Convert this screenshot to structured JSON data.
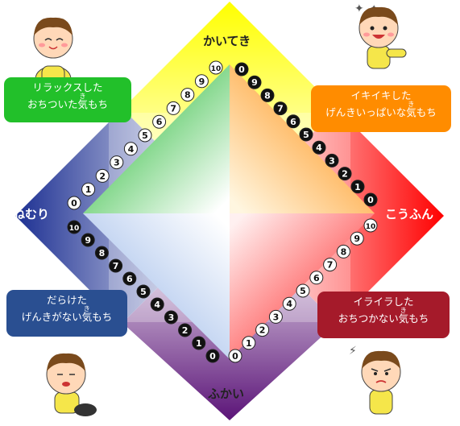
{
  "axes": {
    "top": "かいてき",
    "bottom": "ふかい",
    "left": "ねむり",
    "right": "こうふん"
  },
  "quadrant_boxes": {
    "top_left": {
      "line1": "リラックスした",
      "line2_pre": "おちついた",
      "kanji": "気",
      "furigana": "き",
      "line2_post": "もち",
      "color": "#22c02a"
    },
    "top_right": {
      "line1": "イキイキした",
      "line2_pre": "げんきいっぱいな",
      "kanji": "気",
      "furigana": "き",
      "line2_post": "もち",
      "color": "#ff8c00"
    },
    "bottom_left": {
      "line1": "だらけた",
      "line2_pre": "げんきがない",
      "kanji": "気",
      "furigana": "き",
      "line2_post": "もち",
      "color": "#2a4f91"
    },
    "bottom_right": {
      "line1": "イライラした",
      "line2_pre": "おちつかない",
      "kanji": "気",
      "furigana": "き",
      "line2_post": "もち",
      "color": "#a51a2a"
    }
  },
  "scales": {
    "top_left_edge": {
      "numbers": [
        "0",
        "1",
        "2",
        "3",
        "4",
        "5",
        "6",
        "7",
        "8",
        "9",
        "10"
      ],
      "style": "white"
    },
    "top_right_edge": {
      "numbers": [
        "0",
        "9",
        "8",
        "7",
        "6",
        "5",
        "4",
        "3",
        "2",
        "1",
        "0"
      ],
      "style": "black"
    },
    "bottom_left_edge": {
      "numbers": [
        "10",
        "9",
        "8",
        "7",
        "6",
        "5",
        "4",
        "3",
        "2",
        "1",
        "0"
      ],
      "style": "black"
    },
    "bottom_right_edge": {
      "numbers": [
        "0",
        "1",
        "2",
        "3",
        "4",
        "5",
        "6",
        "7",
        "8",
        "9",
        "10"
      ],
      "style": "white"
    }
  },
  "colors": {
    "yellow": "#ffff00",
    "red": "#ff0000",
    "purple": "#5b1478",
    "navy": "#2a3e9a",
    "green": "#1fb82b",
    "orange": "#ff8a00",
    "light_blue": "#a9c4ec",
    "pink_red": "#ff3a3a"
  },
  "illustrations": [
    "relaxed-boy-icon",
    "excited-boy-icon",
    "tired-boy-icon",
    "irritated-boy-icon"
  ]
}
